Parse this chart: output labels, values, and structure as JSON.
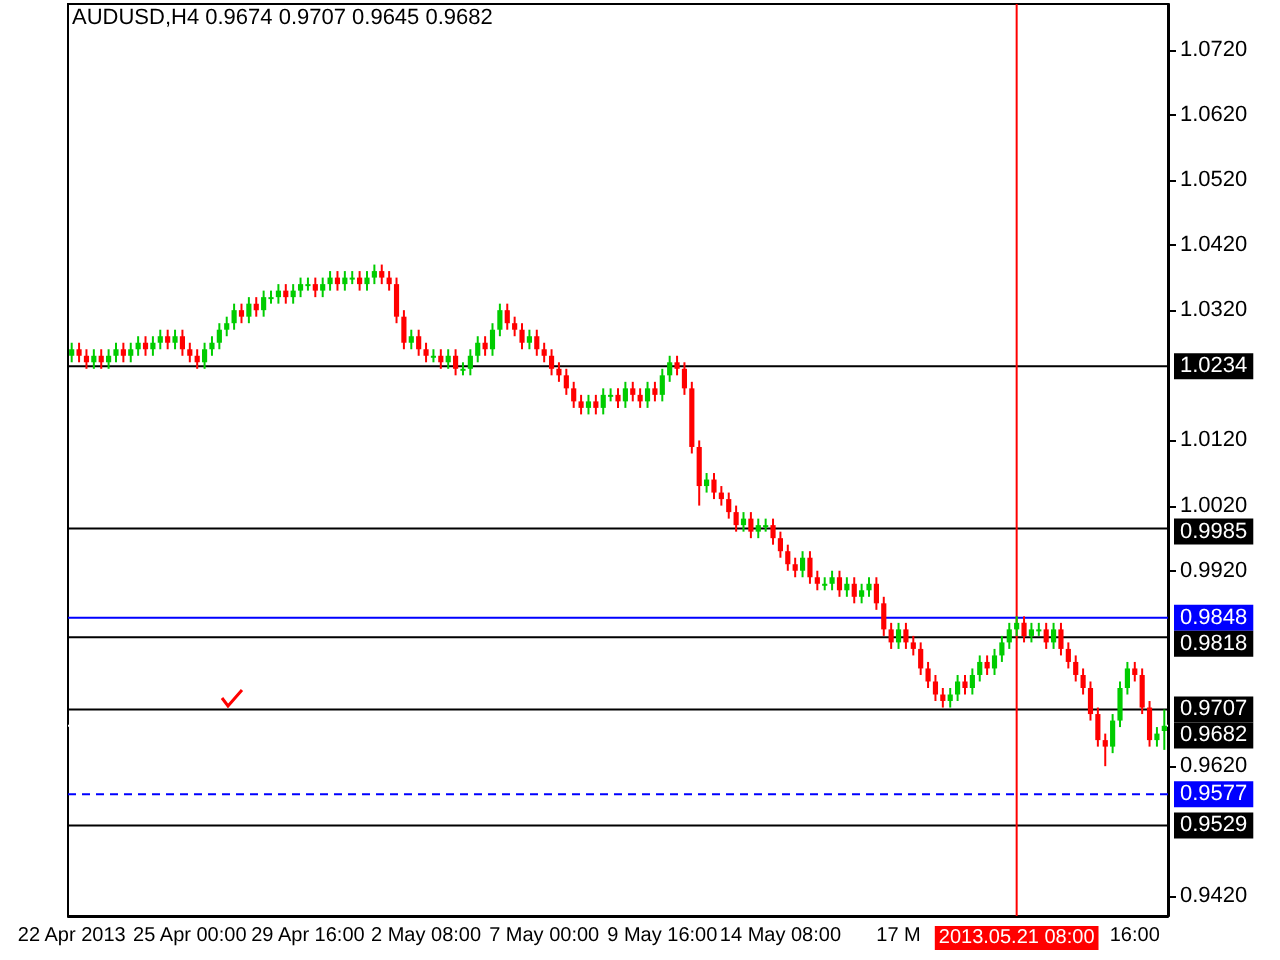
{
  "chart_data": {
    "type": "candlestick",
    "title": "AUDUSD,H4  0.9674 0.9707 0.9645 0.9682",
    "categories": [
      "22 Apr 2013",
      null,
      null,
      null,
      null,
      null,
      null,
      null,
      null,
      null,
      null,
      null,
      null,
      null,
      null,
      null,
      "25 Apr 00:00",
      null,
      null,
      null,
      null,
      null,
      null,
      null,
      null,
      null,
      null,
      null,
      null,
      null,
      null,
      null,
      "29 Apr 16:00",
      null,
      null,
      null,
      null,
      null,
      null,
      null,
      null,
      null,
      null,
      null,
      null,
      null,
      null,
      null,
      "2 May 08:00",
      null,
      null,
      null,
      null,
      null,
      null,
      null,
      null,
      null,
      null,
      null,
      null,
      null,
      null,
      null,
      "7 May 00:00",
      null,
      null,
      null,
      null,
      null,
      null,
      null,
      null,
      null,
      null,
      null,
      null,
      null,
      null,
      null,
      "9 May 16:00",
      null,
      null,
      null,
      null,
      null,
      null,
      null,
      null,
      null,
      null,
      null,
      null,
      null,
      null,
      null,
      "14 May 08:00",
      null,
      null,
      null,
      null,
      null,
      null,
      null,
      null,
      null,
      null,
      null,
      null,
      null,
      null,
      null,
      "17 M",
      null,
      null,
      null,
      null,
      null,
      null,
      null,
      null,
      null,
      null,
      null,
      null,
      null,
      null,
      null,
      "2013.05.21 08:00",
      null,
      null,
      null,
      null,
      null,
      null,
      null,
      null,
      null,
      null,
      null,
      null,
      null,
      null,
      null,
      "16:00",
      null,
      null,
      null,
      null
    ],
    "ohlc": [
      [
        1.025,
        1.027,
        1.024,
        1.026
      ],
      [
        1.026,
        1.027,
        1.024,
        1.025
      ],
      [
        1.025,
        1.026,
        1.023,
        1.024
      ],
      [
        1.024,
        1.026,
        1.023,
        1.025
      ],
      [
        1.025,
        1.026,
        1.023,
        1.024
      ],
      [
        1.024,
        1.026,
        1.023,
        1.025
      ],
      [
        1.025,
        1.027,
        1.024,
        1.026
      ],
      [
        1.026,
        1.027,
        1.024,
        1.025
      ],
      [
        1.025,
        1.027,
        1.024,
        1.026
      ],
      [
        1.026,
        1.028,
        1.025,
        1.027
      ],
      [
        1.027,
        1.028,
        1.025,
        1.026
      ],
      [
        1.026,
        1.028,
        1.025,
        1.027
      ],
      [
        1.027,
        1.029,
        1.026,
        1.028
      ],
      [
        1.028,
        1.029,
        1.026,
        1.027
      ],
      [
        1.027,
        1.029,
        1.026,
        1.028
      ],
      [
        1.028,
        1.029,
        1.025,
        1.026
      ],
      [
        1.026,
        1.027,
        1.024,
        1.025
      ],
      [
        1.025,
        1.026,
        1.023,
        1.024
      ],
      [
        1.024,
        1.027,
        1.023,
        1.026
      ],
      [
        1.026,
        1.028,
        1.025,
        1.027
      ],
      [
        1.027,
        1.03,
        1.026,
        1.029
      ],
      [
        1.029,
        1.031,
        1.028,
        1.03
      ],
      [
        1.03,
        1.033,
        1.029,
        1.032
      ],
      [
        1.032,
        1.033,
        1.03,
        1.031
      ],
      [
        1.031,
        1.034,
        1.03,
        1.033
      ],
      [
        1.033,
        1.034,
        1.031,
        1.032
      ],
      [
        1.032,
        1.035,
        1.031,
        1.034
      ],
      [
        1.034,
        1.035,
        1.033,
        1.034
      ],
      [
        1.034,
        1.036,
        1.033,
        1.035
      ],
      [
        1.035,
        1.036,
        1.033,
        1.034
      ],
      [
        1.034,
        1.036,
        1.033,
        1.035
      ],
      [
        1.035,
        1.037,
        1.034,
        1.036
      ],
      [
        1.036,
        1.037,
        1.035,
        1.036
      ],
      [
        1.036,
        1.037,
        1.034,
        1.035
      ],
      [
        1.035,
        1.037,
        1.034,
        1.036
      ],
      [
        1.036,
        1.038,
        1.035,
        1.037
      ],
      [
        1.037,
        1.038,
        1.035,
        1.036
      ],
      [
        1.036,
        1.038,
        1.035,
        1.037
      ],
      [
        1.037,
        1.038,
        1.036,
        1.037
      ],
      [
        1.037,
        1.038,
        1.035,
        1.036
      ],
      [
        1.036,
        1.038,
        1.035,
        1.037
      ],
      [
        1.037,
        1.039,
        1.036,
        1.038
      ],
      [
        1.038,
        1.039,
        1.036,
        1.037
      ],
      [
        1.037,
        1.038,
        1.035,
        1.036
      ],
      [
        1.036,
        1.037,
        1.03,
        1.031
      ],
      [
        1.031,
        1.032,
        1.026,
        1.027
      ],
      [
        1.027,
        1.029,
        1.026,
        1.028
      ],
      [
        1.028,
        1.029,
        1.025,
        1.026
      ],
      [
        1.026,
        1.027,
        1.024,
        1.025
      ],
      [
        1.025,
        1.026,
        1.024,
        1.025
      ],
      [
        1.025,
        1.026,
        1.023,
        1.024
      ],
      [
        1.024,
        1.026,
        1.023,
        1.025
      ],
      [
        1.025,
        1.026,
        1.022,
        1.023
      ],
      [
        1.023,
        1.024,
        1.022,
        1.023
      ],
      [
        1.023,
        1.026,
        1.022,
        1.025
      ],
      [
        1.025,
        1.028,
        1.024,
        1.027
      ],
      [
        1.027,
        1.028,
        1.025,
        1.026
      ],
      [
        1.026,
        1.03,
        1.025,
        1.029
      ],
      [
        1.029,
        1.033,
        1.028,
        1.032
      ],
      [
        1.032,
        1.033,
        1.029,
        1.03
      ],
      [
        1.03,
        1.031,
        1.028,
        1.029
      ],
      [
        1.029,
        1.03,
        1.026,
        1.027
      ],
      [
        1.027,
        1.029,
        1.026,
        1.028
      ],
      [
        1.028,
        1.029,
        1.025,
        1.026
      ],
      [
        1.026,
        1.027,
        1.024,
        1.025
      ],
      [
        1.025,
        1.026,
        1.022,
        1.023
      ],
      [
        1.023,
        1.024,
        1.021,
        1.022
      ],
      [
        1.022,
        1.023,
        1.019,
        1.02
      ],
      [
        1.02,
        1.021,
        1.017,
        1.018
      ],
      [
        1.018,
        1.019,
        1.016,
        1.017
      ],
      [
        1.017,
        1.019,
        1.016,
        1.018
      ],
      [
        1.018,
        1.019,
        1.016,
        1.017
      ],
      [
        1.017,
        1.02,
        1.016,
        1.019
      ],
      [
        1.019,
        1.02,
        1.018,
        1.019
      ],
      [
        1.019,
        1.02,
        1.017,
        1.018
      ],
      [
        1.018,
        1.021,
        1.017,
        1.02
      ],
      [
        1.02,
        1.021,
        1.018,
        1.019
      ],
      [
        1.019,
        1.02,
        1.017,
        1.018
      ],
      [
        1.018,
        1.021,
        1.017,
        1.02
      ],
      [
        1.02,
        1.021,
        1.018,
        1.019
      ],
      [
        1.019,
        1.023,
        1.018,
        1.022
      ],
      [
        1.022,
        1.025,
        1.021,
        1.024
      ],
      [
        1.024,
        1.025,
        1.022,
        1.023
      ],
      [
        1.023,
        1.024,
        1.019,
        1.02
      ],
      [
        1.02,
        1.021,
        1.01,
        1.011
      ],
      [
        1.011,
        1.012,
        1.002,
        1.005
      ],
      [
        1.005,
        1.007,
        1.004,
        1.006
      ],
      [
        1.006,
        1.007,
        1.003,
        1.004
      ],
      [
        1.004,
        1.005,
        1.002,
        1.003
      ],
      [
        1.003,
        1.004,
        1.0,
        1.001
      ],
      [
        1.001,
        1.002,
        0.998,
        0.999
      ],
      [
        0.999,
        1.001,
        0.998,
        1.0
      ],
      [
        1.0,
        1.001,
        0.997,
        0.998
      ],
      [
        0.998,
        1.0,
        0.997,
        0.999
      ],
      [
        0.999,
        1.0,
        0.998,
        0.999
      ],
      [
        0.999,
        1.0,
        0.996,
        0.997
      ],
      [
        0.997,
        0.998,
        0.994,
        0.995
      ],
      [
        0.995,
        0.996,
        0.992,
        0.993
      ],
      [
        0.993,
        0.994,
        0.991,
        0.992
      ],
      [
        0.992,
        0.995,
        0.991,
        0.994
      ],
      [
        0.994,
        0.995,
        0.99,
        0.991
      ],
      [
        0.991,
        0.992,
        0.989,
        0.99
      ],
      [
        0.99,
        0.991,
        0.989,
        0.99
      ],
      [
        0.99,
        0.992,
        0.989,
        0.991
      ],
      [
        0.991,
        0.992,
        0.988,
        0.989
      ],
      [
        0.989,
        0.991,
        0.988,
        0.99
      ],
      [
        0.99,
        0.991,
        0.987,
        0.988
      ],
      [
        0.988,
        0.99,
        0.987,
        0.989
      ],
      [
        0.989,
        0.991,
        0.988,
        0.99
      ],
      [
        0.99,
        0.991,
        0.986,
        0.987
      ],
      [
        0.987,
        0.988,
        0.982,
        0.983
      ],
      [
        0.983,
        0.984,
        0.98,
        0.981
      ],
      [
        0.981,
        0.984,
        0.98,
        0.983
      ],
      [
        0.983,
        0.984,
        0.98,
        0.981
      ],
      [
        0.981,
        0.982,
        0.979,
        0.98
      ],
      [
        0.98,
        0.981,
        0.976,
        0.977
      ],
      [
        0.977,
        0.978,
        0.974,
        0.975
      ],
      [
        0.975,
        0.976,
        0.972,
        0.973
      ],
      [
        0.973,
        0.974,
        0.971,
        0.972
      ],
      [
        0.972,
        0.974,
        0.971,
        0.973
      ],
      [
        0.973,
        0.976,
        0.972,
        0.975
      ],
      [
        0.975,
        0.976,
        0.973,
        0.974
      ],
      [
        0.974,
        0.977,
        0.973,
        0.976
      ],
      [
        0.976,
        0.979,
        0.975,
        0.978
      ],
      [
        0.978,
        0.979,
        0.976,
        0.977
      ],
      [
        0.977,
        0.98,
        0.976,
        0.979
      ],
      [
        0.979,
        0.982,
        0.978,
        0.981
      ],
      [
        0.981,
        0.984,
        0.98,
        0.983
      ],
      [
        0.983,
        0.985,
        0.982,
        0.984
      ],
      [
        0.984,
        0.985,
        0.981,
        0.982
      ],
      [
        0.982,
        0.984,
        0.981,
        0.983
      ],
      [
        0.983,
        0.984,
        0.982,
        0.983
      ],
      [
        0.983,
        0.984,
        0.98,
        0.981
      ],
      [
        0.981,
        0.984,
        0.98,
        0.983
      ],
      [
        0.983,
        0.984,
        0.979,
        0.98
      ],
      [
        0.98,
        0.981,
        0.977,
        0.978
      ],
      [
        0.978,
        0.979,
        0.975,
        0.976
      ],
      [
        0.976,
        0.977,
        0.973,
        0.974
      ],
      [
        0.974,
        0.975,
        0.969,
        0.97
      ],
      [
        0.97,
        0.971,
        0.965,
        0.966
      ],
      [
        0.966,
        0.967,
        0.962,
        0.965
      ],
      [
        0.965,
        0.97,
        0.964,
        0.969
      ],
      [
        0.969,
        0.975,
        0.968,
        0.974
      ],
      [
        0.974,
        0.978,
        0.973,
        0.977
      ],
      [
        0.977,
        0.978,
        0.975,
        0.976
      ],
      [
        0.976,
        0.977,
        0.97,
        0.971
      ],
      [
        0.971,
        0.972,
        0.965,
        0.966
      ],
      [
        0.966,
        0.968,
        0.965,
        0.967
      ],
      [
        0.9674,
        0.9707,
        0.9645,
        0.9682
      ]
    ],
    "ylim": [
      0.939,
      1.079
    ],
    "yticks": [
      {
        "value": 0.942,
        "label": "0.9420"
      },
      {
        "value": 0.962,
        "label": "0.9620"
      },
      {
        "value": 0.992,
        "label": "0.9920"
      },
      {
        "value": 1.002,
        "label": "1.0020"
      },
      {
        "value": 1.012,
        "label": "1.0120"
      },
      {
        "value": 1.032,
        "label": "1.0320"
      },
      {
        "value": 1.042,
        "label": "1.0420"
      },
      {
        "value": 1.052,
        "label": "1.0520"
      },
      {
        "value": 1.062,
        "label": "1.0620"
      },
      {
        "value": 1.072,
        "label": "1.0720"
      }
    ],
    "ref_lines": [
      {
        "axis": "y",
        "value": 1.0234,
        "label": "1.0234",
        "color": "#000000"
      },
      {
        "axis": "y",
        "value": 0.9985,
        "label": "0.9985",
        "color": "#000000"
      },
      {
        "axis": "y",
        "value": 0.9848,
        "label": "0.9848",
        "color": "#0000ff"
      },
      {
        "axis": "y",
        "value": 0.9818,
        "label": "0.9818",
        "color": "#000000"
      },
      {
        "axis": "y",
        "value": 0.9707,
        "label": "0.9707",
        "color": "#000000"
      },
      {
        "axis": "y",
        "value": 0.9682,
        "label": "0.9682",
        "color": "#ffffff"
      },
      {
        "axis": "y",
        "value": 0.9577,
        "label": "0.9577",
        "color": "#0000ff",
        "line_style": "dashed"
      },
      {
        "axis": "y",
        "value": 0.9529,
        "label": "0.9529",
        "color": "#000000"
      },
      {
        "axis": "x",
        "value": "2013.05.21 08:00",
        "color": "#ff0000"
      }
    ],
    "grid": false
  }
}
